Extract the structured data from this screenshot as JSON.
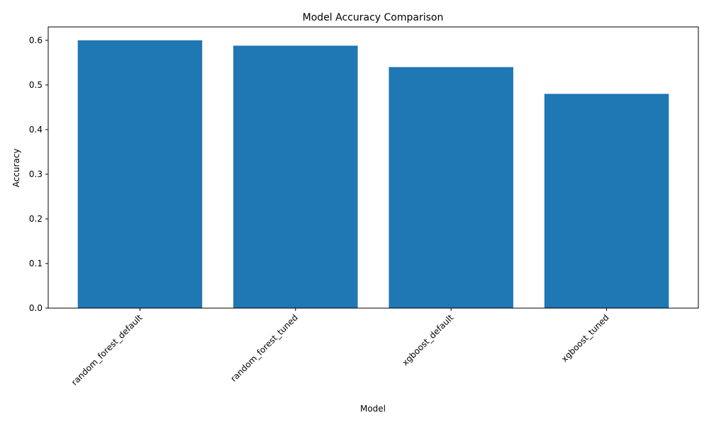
{
  "chart_data": {
    "type": "bar",
    "title": "Model Accuracy Comparison",
    "xlabel": "Model",
    "ylabel": "Accuracy",
    "categories": [
      "random_forest_default",
      "random_forest_tuned",
      "xgboost_default",
      "xgboost_tuned"
    ],
    "values": [
      0.6,
      0.588,
      0.54,
      0.48
    ],
    "ylim": [
      0,
      0.63
    ],
    "yticks": [
      "0.0",
      "0.1",
      "0.2",
      "0.3",
      "0.4",
      "0.5",
      "0.6"
    ],
    "xtick_rotation": "45deg",
    "grid": false,
    "bar_color": "#1f77b4"
  }
}
